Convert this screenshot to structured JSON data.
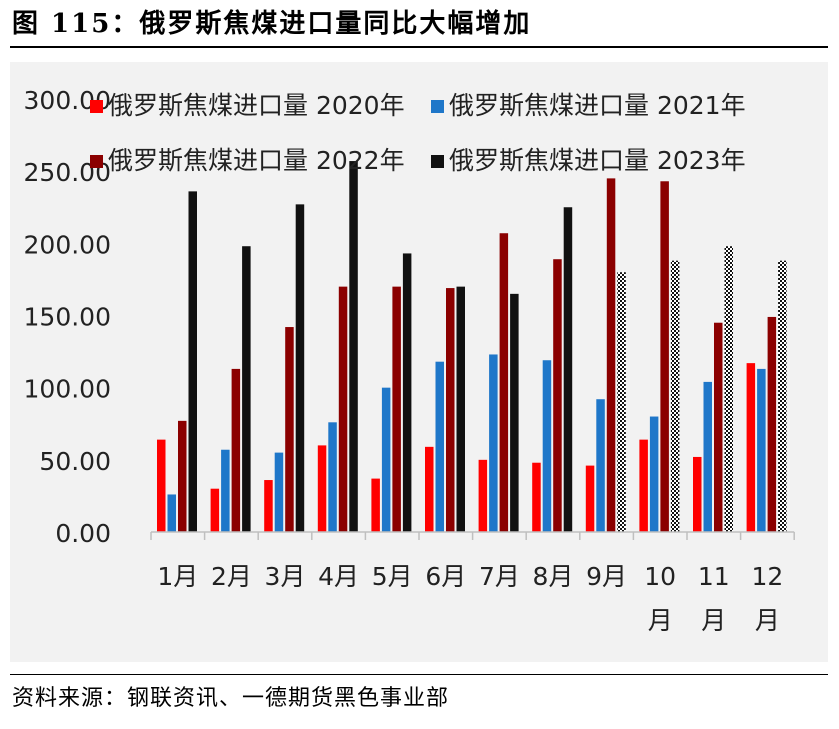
{
  "title": "图 115：俄罗斯焦煤进口量同比大幅增加",
  "source": "资料来源：钢联资讯、一德期货黑色事业部",
  "colors": {
    "s2020": "#ff0000",
    "s2021": "#1f77c9",
    "s2022": "#8b0000",
    "s2023": "#111111",
    "panel": "#f2f2f2",
    "axis": "#bfbfbf"
  },
  "chart_data": {
    "type": "bar",
    "ylim": [
      0,
      300
    ],
    "yticks": [
      "0.00",
      "50.00",
      "100.00",
      "150.00",
      "200.00",
      "250.00",
      "300.00"
    ],
    "categories": [
      "1月",
      "2月",
      "3月",
      "4月",
      "5月",
      "6月",
      "7月",
      "8月",
      "9月",
      "10月",
      "11月",
      "12月"
    ],
    "legend_position": "top",
    "series": [
      {
        "name": "俄罗斯焦煤进口量 2020年",
        "color": "#ff0000",
        "values": [
          64,
          30,
          36,
          60,
          37,
          59,
          50,
          48,
          46,
          64,
          52,
          117
        ]
      },
      {
        "name": "俄罗斯焦煤进口量 2021年",
        "color": "#1f77c9",
        "values": [
          26,
          57,
          55,
          76,
          100,
          118,
          123,
          119,
          92,
          80,
          104,
          113
        ]
      },
      {
        "name": "俄罗斯焦煤进口量 2022年",
        "color": "#8b0000",
        "values": [
          77,
          113,
          142,
          170,
          170,
          169,
          207,
          189,
          245,
          243,
          145,
          149
        ]
      },
      {
        "name": "俄罗斯焦煤进口量 2023年",
        "color": "#111111",
        "values": [
          236,
          198,
          227,
          257,
          193,
          170,
          165,
          225,
          180,
          188,
          198,
          188
        ],
        "hatched_from_index": 8
      }
    ]
  }
}
